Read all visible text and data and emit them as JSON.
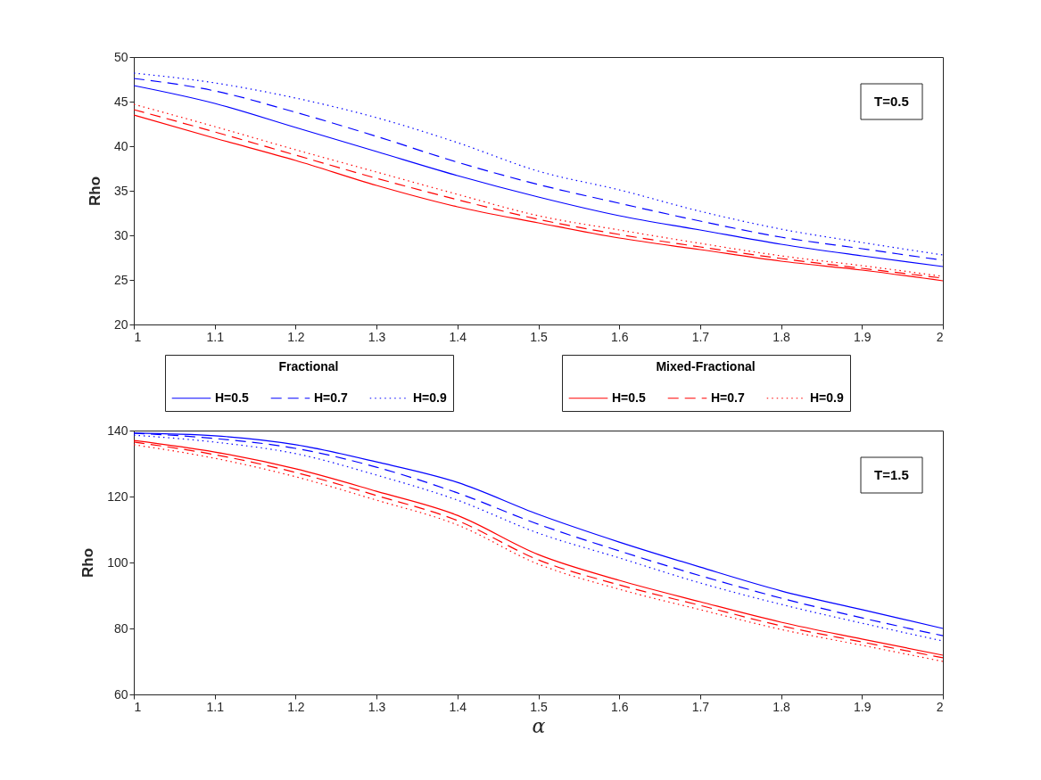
{
  "chart_data": [
    {
      "type": "line",
      "ylabel": "Rho",
      "x": [
        1,
        1.1,
        1.2,
        1.3,
        1.4,
        1.5,
        1.6,
        1.7,
        1.8,
        1.9,
        2
      ],
      "xlim": [
        1,
        2
      ],
      "xticks": [
        1,
        1.1,
        1.2,
        1.3,
        1.4,
        1.5,
        1.6,
        1.7,
        1.8,
        1.9,
        2
      ],
      "ylim": [
        20,
        50
      ],
      "yticks": [
        20,
        25,
        30,
        35,
        40,
        45,
        50
      ],
      "grid": false,
      "legend": "bottom",
      "annotations": [
        "T=0.5",
        "Fractional",
        "Mixed-Fractional"
      ],
      "series": [
        {
          "name": "H=0.5",
          "color": "#0000ff",
          "line_style": "solid",
          "values": [
            46.8,
            44.8,
            42.1,
            39.4,
            36.7,
            34.3,
            32.2,
            30.6,
            29.0,
            27.7,
            26.5
          ]
        },
        {
          "name": "H=0.7",
          "color": "#0000ff",
          "line_style": "dashed",
          "values": [
            47.6,
            46.2,
            43.8,
            41.1,
            38.2,
            35.7,
            33.6,
            31.6,
            29.8,
            28.5,
            27.2
          ]
        },
        {
          "name": "H=0.9",
          "color": "#0000ff",
          "line_style": "dotted",
          "values": [
            48.2,
            47.1,
            45.4,
            43.2,
            40.4,
            37.2,
            35.1,
            32.7,
            30.7,
            29.2,
            27.8
          ]
        },
        {
          "name": "H=0.5",
          "color": "#ff0000",
          "line_style": "solid",
          "values": [
            43.5,
            40.9,
            38.4,
            35.6,
            33.2,
            31.4,
            29.7,
            28.4,
            27.1,
            26.1,
            24.9
          ]
        },
        {
          "name": "H=0.7",
          "color": "#ff0000",
          "line_style": "dashed",
          "values": [
            44.1,
            41.6,
            39.0,
            36.4,
            34.0,
            31.8,
            30.1,
            28.7,
            27.4,
            26.3,
            25.2
          ]
        },
        {
          "name": "H=0.9",
          "color": "#ff0000",
          "line_style": "dotted",
          "values": [
            44.7,
            42.2,
            39.6,
            37.1,
            34.6,
            32.2,
            30.6,
            29.1,
            27.7,
            26.6,
            25.4
          ]
        }
      ]
    },
    {
      "type": "line",
      "xlabel": "α",
      "ylabel": "Rho",
      "x": [
        1,
        1.1,
        1.2,
        1.3,
        1.4,
        1.5,
        1.6,
        1.7,
        1.8,
        1.9,
        2
      ],
      "xlim": [
        1,
        2
      ],
      "xticks": [
        1,
        1.1,
        1.2,
        1.3,
        1.4,
        1.5,
        1.6,
        1.7,
        1.8,
        1.9,
        2
      ],
      "ylim": [
        60,
        140
      ],
      "yticks": [
        60,
        80,
        100,
        120,
        140
      ],
      "grid": false,
      "annotations": [
        "T=1.5"
      ],
      "series": [
        {
          "color": "#0000ff",
          "line_style": "solid",
          "values": [
            139.2,
            138.4,
            135.7,
            130.5,
            124.3,
            114.6,
            106.2,
            98.6,
            91.4,
            85.7,
            80.0
          ]
        },
        {
          "color": "#0000ff",
          "line_style": "dashed",
          "values": [
            139.2,
            137.6,
            134.6,
            128.9,
            121.1,
            111.6,
            103.5,
            96.0,
            89.2,
            83.2,
            77.8
          ]
        },
        {
          "color": "#0000ff",
          "line_style": "dotted",
          "values": [
            138.6,
            136.5,
            133.0,
            126.5,
            118.9,
            108.9,
            101.4,
            93.8,
            87.3,
            81.6,
            76.2
          ]
        },
        {
          "color": "#ff0000",
          "line_style": "solid",
          "values": [
            137.0,
            133.5,
            128.4,
            121.6,
            114.3,
            102.4,
            94.6,
            88.1,
            81.9,
            76.8,
            71.9
          ]
        },
        {
          "color": "#ff0000",
          "line_style": "dashed",
          "values": [
            136.5,
            132.7,
            127.3,
            120.3,
            112.7,
            100.8,
            93.2,
            87.0,
            80.8,
            75.9,
            71.1
          ]
        },
        {
          "color": "#ff0000",
          "line_style": "dotted",
          "values": [
            135.7,
            131.6,
            126.0,
            118.9,
            111.4,
            99.5,
            91.9,
            85.7,
            79.7,
            74.9,
            70.0
          ]
        }
      ]
    }
  ]
}
